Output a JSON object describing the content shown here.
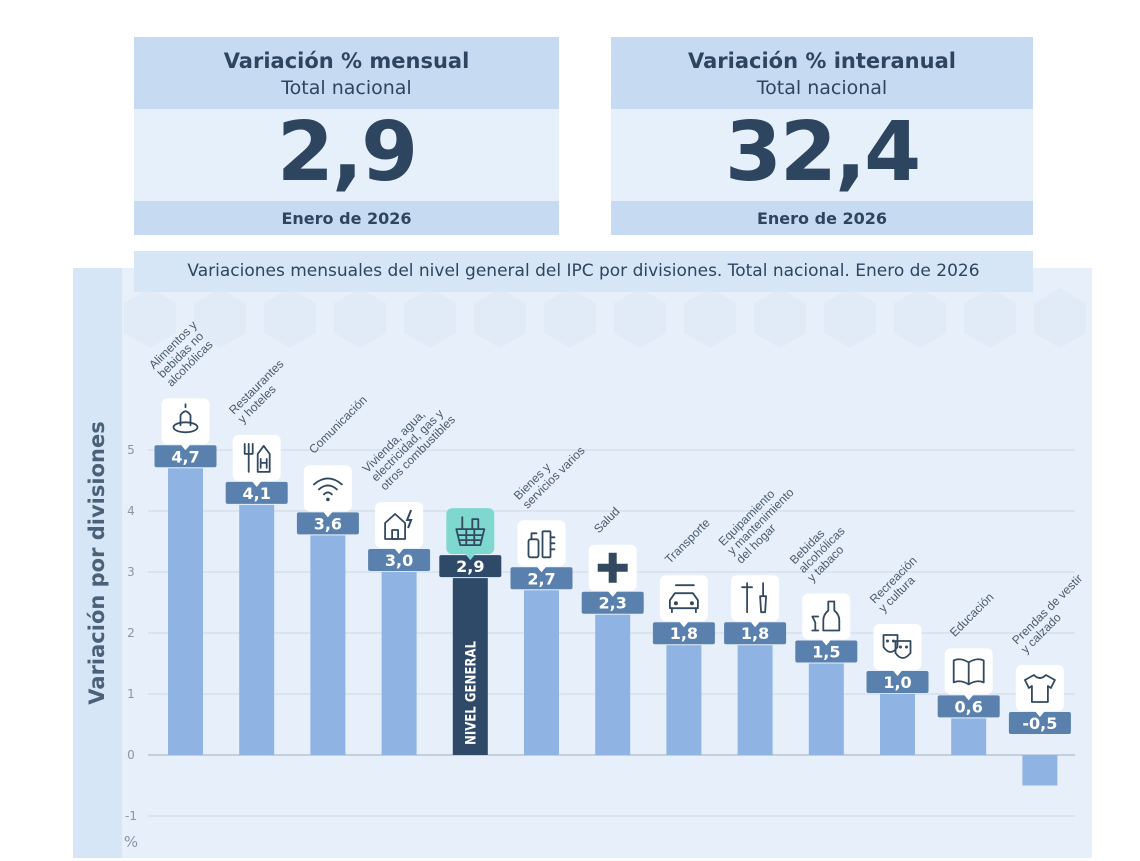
{
  "card_monthly": {
    "title": "Variación % mensual",
    "subtitle": "Total nacional",
    "value": "2,9",
    "date": "Enero de 2026"
  },
  "card_yearly": {
    "title": "Variación % interanual",
    "subtitle": "Total nacional",
    "value": "32,4",
    "date": "Enero de 2026"
  },
  "chart_data": {
    "type": "bar",
    "title": "Variaciones mensuales del nivel general del IPC por divisiones. Total nacional. Enero de 2026",
    "ylabel": "Variación por divisiones",
    "yunit": "%",
    "ylim": [
      -1,
      5
    ],
    "yticks": [
      -1,
      0,
      1,
      2,
      3,
      4,
      5
    ],
    "grid": true,
    "colors": {
      "bar": "#8fb4e3",
      "highlight": "#2f4a68",
      "label_bg": "#5a80ae",
      "icon_highlight": "#7fd8cf",
      "panel": "#e7f0fa",
      "sidebar": "#d6e6f6",
      "axis_text": "#8a96a6"
    },
    "categories": [
      {
        "lines": [
          "Alimentos y",
          "bebidas no",
          "alcohólicas"
        ],
        "value": 4.7,
        "value_label": "4,7",
        "icon": "food-icon"
      },
      {
        "lines": [
          "Restaurantes",
          "y hoteles"
        ],
        "value": 4.1,
        "value_label": "4,1",
        "icon": "fork-knife-hotel-icon"
      },
      {
        "lines": [
          "Comunicación"
        ],
        "value": 3.6,
        "value_label": "3,6",
        "icon": "wifi-icon"
      },
      {
        "lines": [
          "Vivienda, agua,",
          "electricidad, gas y",
          "otros combustibles"
        ],
        "value": 3.0,
        "value_label": "3,0",
        "icon": "house-energy-icon"
      },
      {
        "lines": [],
        "bar_text": "NIVEL GENERAL",
        "value": 2.9,
        "value_label": "2,9",
        "icon": "shopping-basket-icon",
        "highlight": true
      },
      {
        "lines": [
          "Bienes y",
          "servicios varios"
        ],
        "value": 2.7,
        "value_label": "2,7",
        "icon": "toiletries-icon"
      },
      {
        "lines": [
          "Salud"
        ],
        "value": 2.3,
        "value_label": "2,3",
        "icon": "health-cross-icon"
      },
      {
        "lines": [
          "Transporte"
        ],
        "value": 1.8,
        "value_label": "1,8",
        "icon": "car-icon"
      },
      {
        "lines": [
          "Equipamiento",
          "y mantenimiento",
          "del hogar"
        ],
        "value": 1.8,
        "value_label": "1,8",
        "icon": "tools-icon"
      },
      {
        "lines": [
          "Bebidas",
          "alcohólicas",
          "y tabaco"
        ],
        "value": 1.5,
        "value_label": "1,5",
        "icon": "bottle-icon"
      },
      {
        "lines": [
          "Recreación",
          "y cultura"
        ],
        "value": 1.0,
        "value_label": "1,0",
        "icon": "theater-masks-icon"
      },
      {
        "lines": [
          "Educación"
        ],
        "value": 0.6,
        "value_label": "0,6",
        "icon": "book-icon"
      },
      {
        "lines": [
          "Prendas de vestir",
          "y calzado"
        ],
        "value": -0.5,
        "value_label": "-0,5",
        "icon": "shirt-icon"
      }
    ]
  }
}
